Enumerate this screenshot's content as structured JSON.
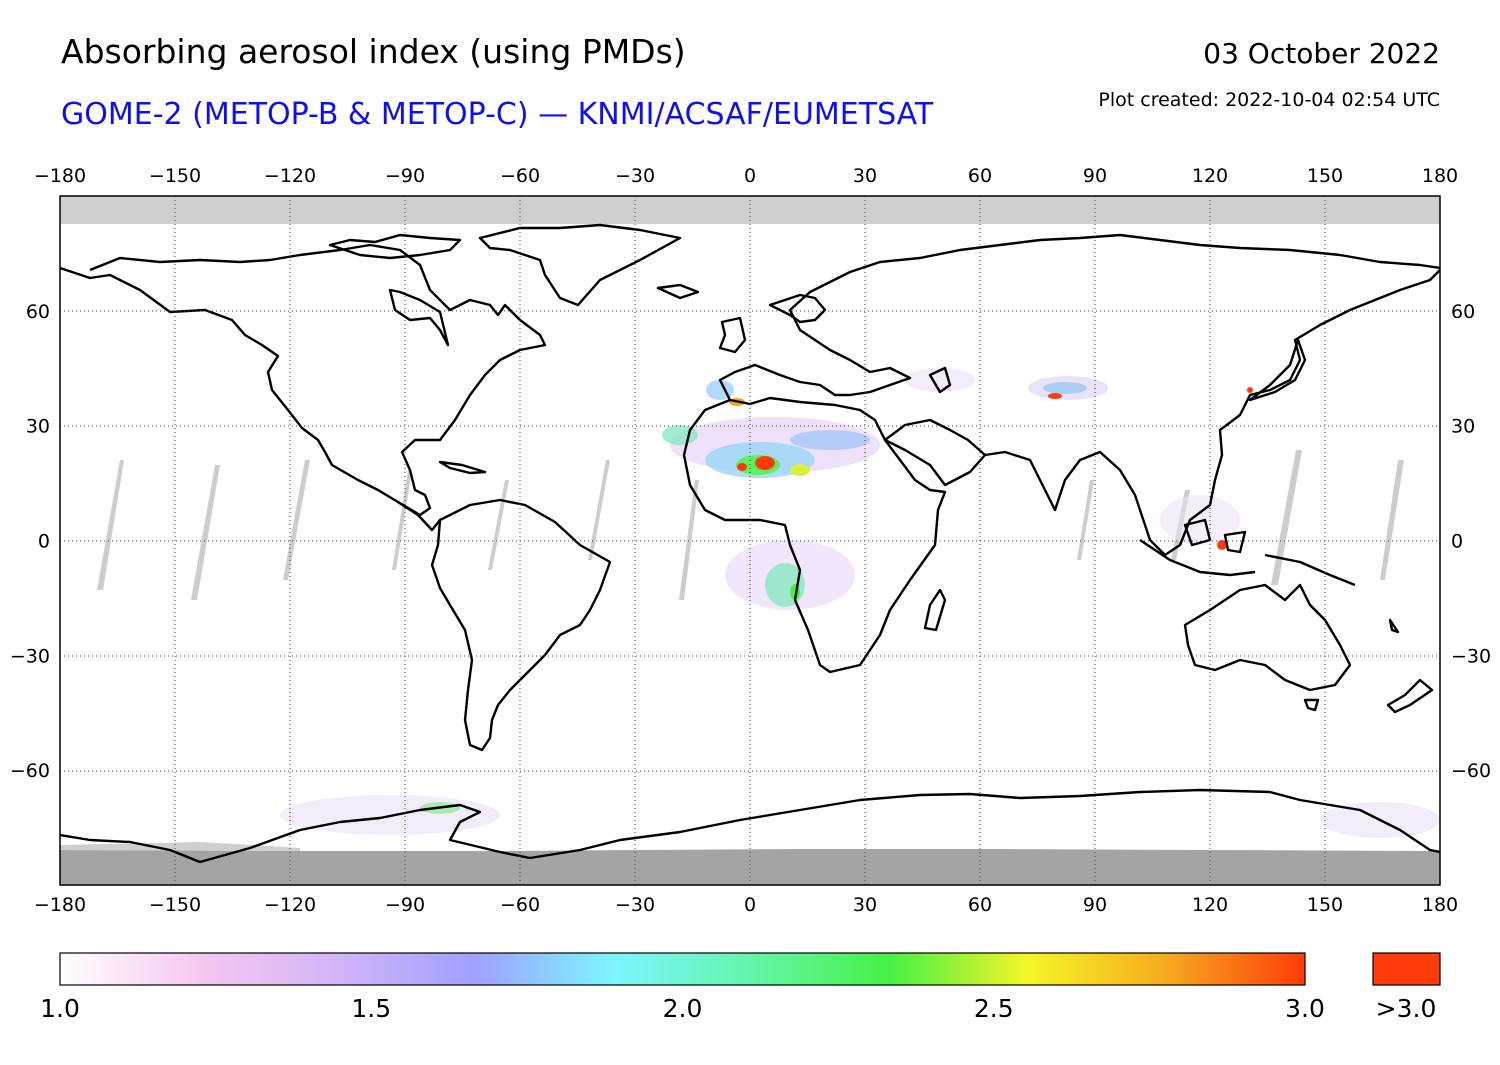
{
  "header": {
    "title": "Absorbing aerosol index (using PMDs)",
    "subtitle": "GOME-2 (METOP-B & METOP-C) — KNMI/ACSAF/EUMETSAT",
    "date": "03 October 2022",
    "plot_created": "Plot created: 2022-10-04 02:54 UTC"
  },
  "map": {
    "projection": "equirectangular",
    "lon_range": [
      -180,
      180
    ],
    "lat_range": [
      -90,
      90
    ],
    "lon_ticks": [
      "−180",
      "−150",
      "−120",
      "−90",
      "−60",
      "−30",
      "0",
      "30",
      "60",
      "90",
      "120",
      "150",
      "180"
    ],
    "lat_ticks": [
      "60",
      "30",
      "0",
      "−30",
      "−60"
    ],
    "gridlines": "dotted",
    "no_data_color": "#c8c8c8",
    "polar_night_color": "#a0a0a0"
  },
  "colorbar": {
    "min": 1.0,
    "max": 3.0,
    "labels": [
      "1.0",
      "1.5",
      "2.0",
      "2.5",
      "3.0"
    ],
    "overflow_label": ">3.0",
    "overflow_color": "#ff3c0a",
    "stops": [
      "#ffffff",
      "#f6c8f0",
      "#d2b4f8",
      "#a0a0ff",
      "#7df5ff",
      "#64f5aa",
      "#46f046",
      "#f5f528",
      "#f5aa1e",
      "#ff3c0a"
    ]
  }
}
